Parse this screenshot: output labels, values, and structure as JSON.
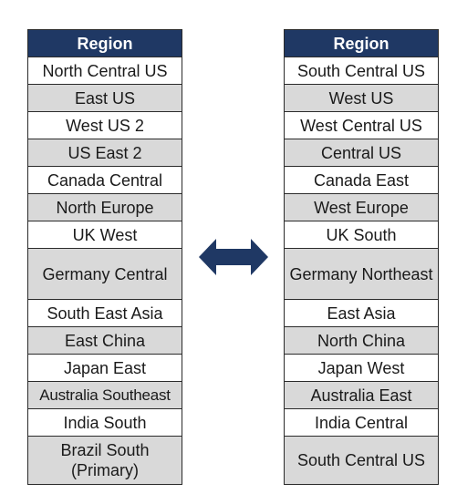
{
  "left_table": {
    "header": "Region",
    "rows": [
      "North Central US",
      "East US",
      "West US 2",
      "US East 2",
      "Canada Central",
      "North Europe",
      "UK West",
      "Germany Central",
      "South East Asia",
      "East China",
      "Japan East",
      "Australia Southeast",
      "India South",
      "Brazil South (Primary)"
    ]
  },
  "right_table": {
    "header": "Region",
    "rows": [
      "South Central US",
      "West US",
      "West Central US",
      "Central US",
      "Canada East",
      "West Europe",
      "UK South",
      "Germany Northeast",
      "East Asia",
      "North China",
      "Japan West",
      "Australia East",
      "India Central",
      "South Central US"
    ]
  },
  "colors": {
    "header_bg": "#1f3864",
    "header_text": "#ffffff",
    "row_alt": "#d9d9d9",
    "arrow": "#1f3864"
  },
  "arrow_icon": "double-headed-arrow-icon"
}
